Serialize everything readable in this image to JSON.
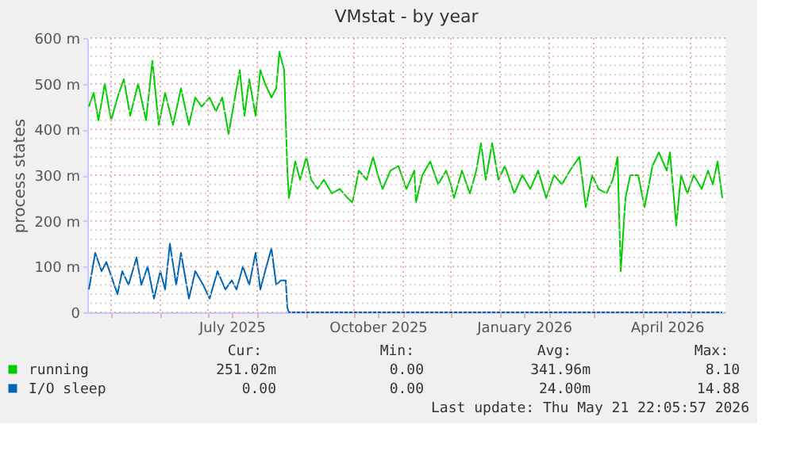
{
  "chart_data": {
    "type": "line",
    "title": "VMstat - by year",
    "ylabel": "process states",
    "xlim": [
      "2025-04-16",
      "2026-05-23"
    ],
    "xticks": [
      {
        "value": "2025-05-01",
        "label": null
      },
      {
        "value": "2025-06-01",
        "label": null
      },
      {
        "value": "2025-07-01",
        "label": null
      },
      {
        "value": "2025-07-16",
        "label": "July 2025"
      },
      {
        "value": "2025-08-01",
        "label": null
      },
      {
        "value": "2025-09-01",
        "label": null
      },
      {
        "value": "2025-10-01",
        "label": null
      },
      {
        "value": "2025-10-16",
        "label": "October 2025"
      },
      {
        "value": "2025-11-01",
        "label": null
      },
      {
        "value": "2025-12-01",
        "label": null
      },
      {
        "value": "2026-01-01",
        "label": null
      },
      {
        "value": "2026-01-16",
        "label": "January 2026"
      },
      {
        "value": "2026-02-01",
        "label": null
      },
      {
        "value": "2026-03-01",
        "label": null
      },
      {
        "value": "2026-04-01",
        "label": null
      },
      {
        "value": "2026-04-16",
        "label": "April 2026"
      },
      {
        "value": "2026-05-01",
        "label": null
      }
    ],
    "ylim": [
      0,
      600
    ],
    "yticks": [
      {
        "value": 0,
        "label": "0"
      },
      {
        "value": 20,
        "label": null
      },
      {
        "value": 40,
        "label": null
      },
      {
        "value": 60,
        "label": null
      },
      {
        "value": 80,
        "label": null
      },
      {
        "value": 100,
        "label": "100 m"
      },
      {
        "value": 120,
        "label": null
      },
      {
        "value": 140,
        "label": null
      },
      {
        "value": 160,
        "label": null
      },
      {
        "value": 180,
        "label": null
      },
      {
        "value": 200,
        "label": "200 m"
      },
      {
        "value": 220,
        "label": null
      },
      {
        "value": 240,
        "label": null
      },
      {
        "value": 260,
        "label": null
      },
      {
        "value": 280,
        "label": null
      },
      {
        "value": 300,
        "label": "300 m"
      },
      {
        "value": 320,
        "label": null
      },
      {
        "value": 340,
        "label": null
      },
      {
        "value": 360,
        "label": null
      },
      {
        "value": 380,
        "label": null
      },
      {
        "value": 400,
        "label": "400 m"
      },
      {
        "value": 420,
        "label": null
      },
      {
        "value": 440,
        "label": null
      },
      {
        "value": 460,
        "label": null
      },
      {
        "value": 480,
        "label": null
      },
      {
        "value": 500,
        "label": "500 m"
      },
      {
        "value": 520,
        "label": null
      },
      {
        "value": 540,
        "label": null
      },
      {
        "value": 560,
        "label": null
      },
      {
        "value": 580,
        "label": null
      },
      {
        "value": 600,
        "label": "600 m"
      }
    ],
    "grid": true,
    "legend": "bottom",
    "marker": "none",
    "line_style": "solid",
    "series": [
      {
        "name": "running",
        "color": "#00cc00",
        "x": [
          "2025-04-17",
          "2025-04-20",
          "2025-04-23",
          "2025-04-27",
          "2025-05-01",
          "2025-05-05",
          "2025-05-09",
          "2025-05-13",
          "2025-05-18",
          "2025-05-23",
          "2025-05-27",
          "2025-05-31",
          "2025-06-04",
          "2025-06-09",
          "2025-06-14",
          "2025-06-19",
          "2025-06-23",
          "2025-06-27",
          "2025-07-02",
          "2025-07-06",
          "2025-07-10",
          "2025-07-14",
          "2025-07-19",
          "2025-07-21",
          "2025-07-24",
          "2025-07-27",
          "2025-07-31",
          "2025-08-03",
          "2025-08-06",
          "2025-08-10",
          "2025-08-13",
          "2025-08-15",
          "2025-08-18",
          "2025-08-20",
          "2025-08-21",
          "2025-08-25",
          "2025-08-28",
          "2025-09-01",
          "2025-09-04",
          "2025-09-08",
          "2025-09-12",
          "2025-09-17",
          "2025-09-22",
          "2025-09-27",
          "2025-09-30",
          "2025-10-04",
          "2025-10-09",
          "2025-10-13",
          "2025-10-16",
          "2025-10-19",
          "2025-10-24",
          "2025-10-29",
          "2025-11-03",
          "2025-11-08",
          "2025-11-09",
          "2025-11-13",
          "2025-11-18",
          "2025-11-23",
          "2025-11-28",
          "2025-12-01",
          "2025-12-03",
          "2025-12-08",
          "2025-12-13",
          "2025-12-17",
          "2025-12-20",
          "2025-12-23",
          "2025-12-27",
          "2025-12-31",
          "2026-01-04",
          "2026-01-10",
          "2026-01-15",
          "2026-01-20",
          "2026-01-25",
          "2026-01-30",
          "2026-02-04",
          "2026-02-09",
          "2026-02-14",
          "2026-02-20",
          "2026-02-24",
          "2026-02-28",
          "2026-03-04",
          "2026-03-09",
          "2026-03-13",
          "2026-03-16",
          "2026-03-18",
          "2026-03-21",
          "2026-03-24",
          "2026-03-29",
          "2026-04-02",
          "2026-04-07",
          "2026-04-11",
          "2026-04-16",
          "2026-04-18",
          "2026-04-22",
          "2026-04-25",
          "2026-04-29",
          "2026-05-03",
          "2026-05-08",
          "2026-05-12",
          "2026-05-15",
          "2026-05-18",
          "2026-05-21"
        ],
        "values": [
          450,
          480,
          420,
          500,
          420,
          470,
          510,
          430,
          500,
          420,
          550,
          410,
          480,
          410,
          490,
          410,
          470,
          450,
          470,
          440,
          470,
          390,
          490,
          530,
          430,
          510,
          430,
          530,
          500,
          470,
          490,
          570,
          530,
          310,
          250,
          330,
          290,
          340,
          290,
          270,
          290,
          260,
          270,
          250,
          240,
          310,
          290,
          340,
          300,
          270,
          310,
          320,
          270,
          310,
          240,
          300,
          330,
          280,
          310,
          280,
          250,
          310,
          260,
          310,
          370,
          290,
          370,
          290,
          320,
          260,
          300,
          270,
          310,
          250,
          300,
          280,
          310,
          340,
          230,
          300,
          270,
          260,
          290,
          340,
          90,
          250,
          300,
          300,
          230,
          320,
          350,
          310,
          350,
          190,
          300,
          260,
          300,
          270,
          310,
          280,
          330,
          250
        ]
      },
      {
        "name": "I/O sleep",
        "color": "#0066b3",
        "x": [
          "2025-04-17",
          "2025-04-18",
          "2025-04-21",
          "2025-04-25",
          "2025-04-28",
          "2025-05-02",
          "2025-05-05",
          "2025-05-08",
          "2025-05-12",
          "2025-05-17",
          "2025-05-20",
          "2025-05-24",
          "2025-05-28",
          "2025-06-01",
          "2025-06-04",
          "2025-06-07",
          "2025-06-11",
          "2025-06-14",
          "2025-06-19",
          "2025-06-23",
          "2025-06-28",
          "2025-07-02",
          "2025-07-07",
          "2025-07-12",
          "2025-07-16",
          "2025-07-19",
          "2025-07-23",
          "2025-07-27",
          "2025-07-31",
          "2025-08-03",
          "2025-08-06",
          "2025-08-10",
          "2025-08-13",
          "2025-08-16",
          "2025-08-19",
          "2025-08-20",
          "2025-08-21",
          "2025-10-01",
          "2026-01-01",
          "2026-04-01",
          "2026-05-21"
        ],
        "values": [
          50,
          70,
          130,
          90,
          110,
          70,
          40,
          90,
          60,
          120,
          60,
          100,
          30,
          90,
          50,
          150,
          60,
          130,
          30,
          90,
          60,
          30,
          90,
          50,
          70,
          50,
          100,
          60,
          130,
          50,
          90,
          140,
          60,
          70,
          70,
          10,
          0,
          0,
          0,
          0,
          0
        ]
      }
    ],
    "annotations": [
      "Cur:",
      "Min:",
      "Avg:",
      "Max:",
      "251.02m",
      "0.00",
      "341.96m",
      "8.10",
      "0.00",
      "0.00",
      "24.00m",
      "14.88",
      "Last update: Thu May 21 22:05:57 2026"
    ]
  }
}
